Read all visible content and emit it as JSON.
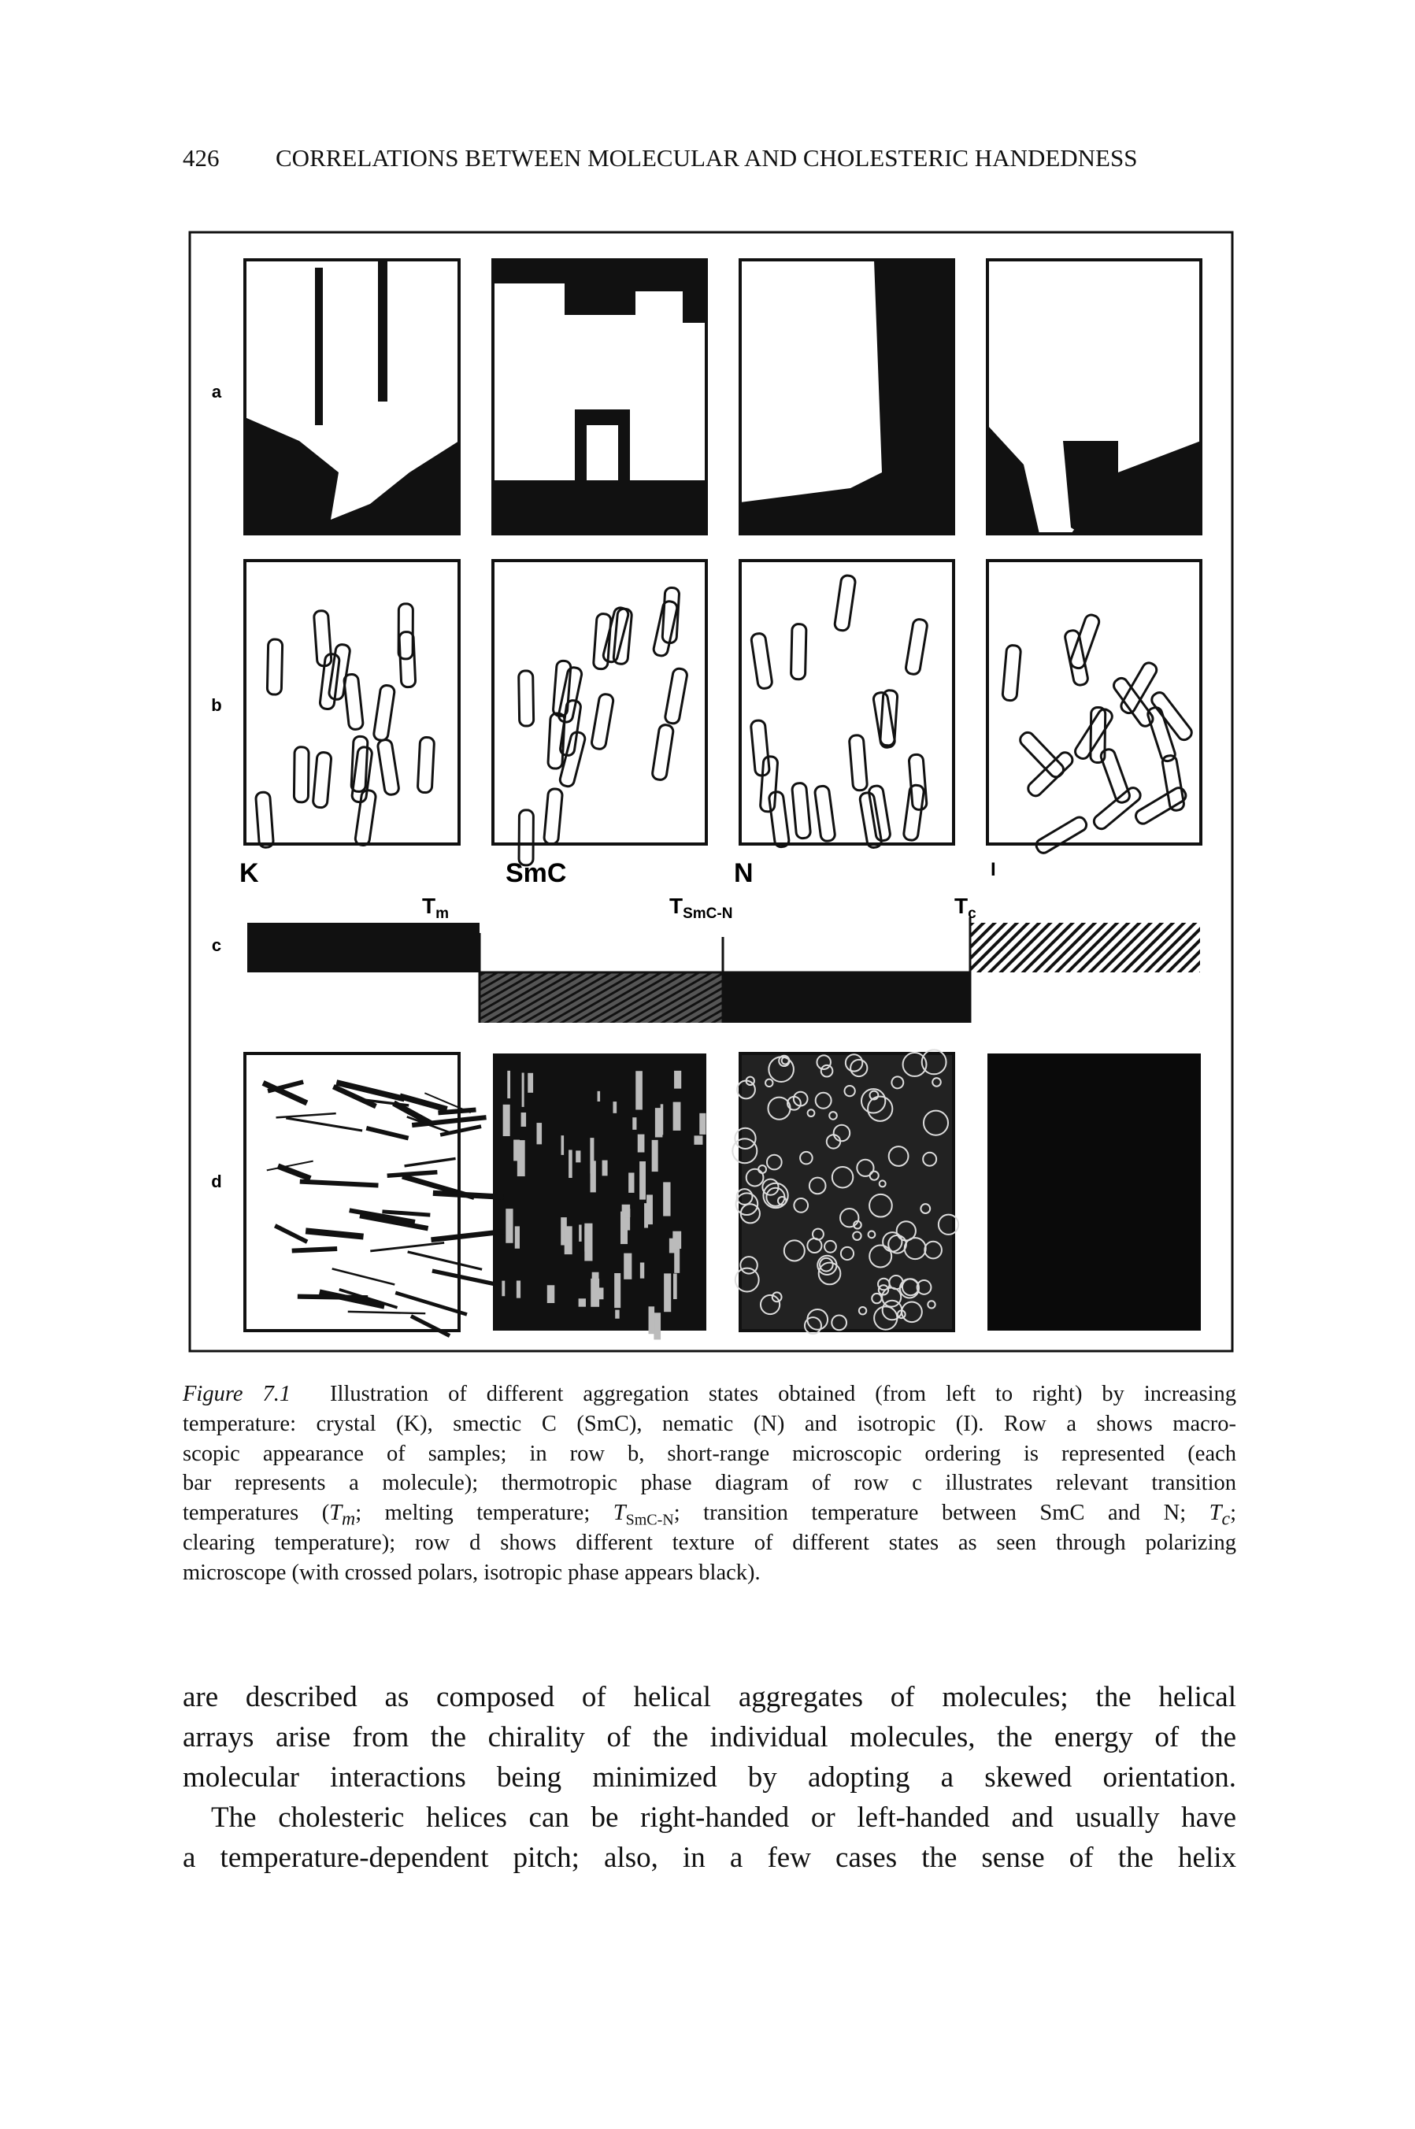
{
  "header": {
    "page_number": "426",
    "running_head": "CORRELATIONS BETWEEN MOLECULAR AND CHOLESTERIC HANDEDNESS"
  },
  "figure": {
    "row_labels": [
      "a",
      "b",
      "c",
      "d"
    ],
    "phases": [
      "K",
      "SmC",
      "N",
      "I"
    ],
    "transitions": [
      {
        "main": "T",
        "sub": "m"
      },
      {
        "main": "T",
        "sub": "SmC-N"
      },
      {
        "main": "T",
        "sub": "c"
      }
    ]
  },
  "caption": {
    "label": "Figure 7.1",
    "line0": "Illustration of different aggregation states obtained (from left to right) by increasing",
    "lines": [
      "temperature: crystal (K), smectic C (SmC), nematic (N) and isotropic (I). Row a shows macro-",
      "scopic appearance of samples; in row b, short-range microscopic ordering is represented (each",
      "bar represents a molecule); thermotropic phase diagram of row c illustrates relevant transition"
    ],
    "line4": [
      "temperatures (",
      "T",
      "m",
      "; melting temperature; ",
      "T",
      "SmC-N",
      "; transition temperature between SmC and N; ",
      "T",
      "c",
      ";"
    ],
    "tail": [
      "clearing temperature); row d shows different texture of different states as seen through polarizing",
      "microscope (with crossed polars, isotropic phase appears black)."
    ]
  },
  "body": {
    "paragraphs": [
      [
        "are described as composed of helical aggregates of molecules; the helical",
        "arrays arise from the chirality of the individual molecules, the energy of the",
        "molecular interactions being minimized by adopting a skewed orientation."
      ],
      [
        "The cholesteric helices can be right-handed or left-handed and usually have",
        "a temperature-dependent pitch; also, in a few cases the sense of the helix"
      ]
    ]
  }
}
